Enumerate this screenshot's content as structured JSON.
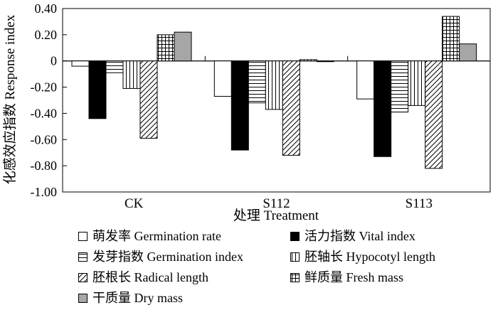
{
  "chart_data": {
    "type": "bar",
    "ylabel": "化感效应指数 Response index",
    "xlabel": "处理 Treatment",
    "ylim": [
      -1.0,
      0.4
    ],
    "yticks": [
      "-1.00",
      "-0.80",
      "-0.60",
      "-0.40",
      "-0.20",
      "0",
      "0.20",
      "0.40"
    ],
    "categories": [
      "CK",
      "S112",
      "S113"
    ],
    "series": [
      {
        "name": "萌发率 Germination rate",
        "pattern": "white",
        "values": [
          -0.04,
          -0.27,
          -0.29
        ]
      },
      {
        "name": "活力指数 Vital index",
        "pattern": "black",
        "values": [
          -0.44,
          -0.68,
          -0.73
        ]
      },
      {
        "name": "发芽指数 Germination index",
        "pattern": "hlines",
        "values": [
          -0.09,
          -0.32,
          -0.39
        ]
      },
      {
        "name": "胚轴长 Hypocotyl length",
        "pattern": "vlines",
        "values": [
          -0.21,
          -0.37,
          -0.34
        ]
      },
      {
        "name": "胚根长 Radical length",
        "pattern": "diag",
        "values": [
          -0.59,
          -0.72,
          -0.82
        ]
      },
      {
        "name": "鲜质量 Fresh mass",
        "pattern": "grid",
        "values": [
          0.2,
          0.01,
          0.34
        ]
      },
      {
        "name": "干质量 Dry mass",
        "pattern": "gray",
        "values": [
          0.22,
          0.0,
          0.13
        ]
      }
    ],
    "grid": false,
    "legend_position": "bottom"
  }
}
